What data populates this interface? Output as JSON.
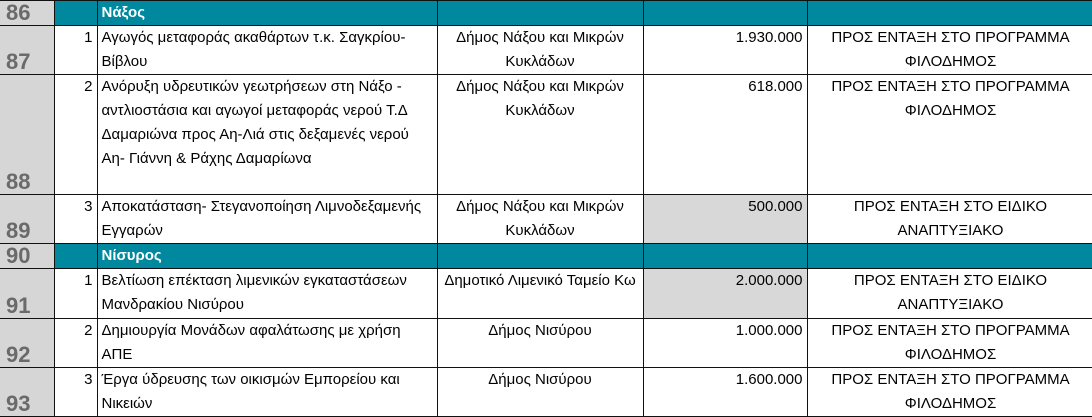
{
  "colors": {
    "section_fill": "#00889f",
    "row_header_fill": "#d6d6d6",
    "highlight_fill": "#d8d8d8"
  },
  "rows": [
    {
      "row": "86",
      "type": "section",
      "title": "Νάξος"
    },
    {
      "row": "87",
      "type": "item",
      "no": "1",
      "project": "Αγωγός μεταφοράς ακαθάρτων τ.κ. Σαγκρίου- Βίβλου",
      "body": "Δήμος Νάξου και Μικρών Κυκλάδων",
      "amount": "1.930.000",
      "amount_highlight": false,
      "status": "ΠΡΟΣ ΕΝΤΑΞΗ ΣΤΟ ΠΡΟΓΡΑΜΜΑ ΦΙΛΟΔΗΜΟΣ"
    },
    {
      "row": "88",
      "type": "item",
      "no": "2",
      "project": "Ανόρυξη υδρευτικών γεωτρήσεων στη Νάξο - αντλιοστάσια και αγωγοί μεταφοράς νερού Τ.Δ Δαμαριώνα προς Αη-Λιά στις δεξαμενές νερού Αη- Γιάννη & Ράχης Δαμαρίωνα",
      "body": "Δήμος Νάξου και Μικρών Κυκλάδων",
      "amount": "618.000",
      "amount_highlight": false,
      "status": "ΠΡΟΣ ΕΝΤΑΞΗ ΣΤΟ ΠΡΟΓΡΑΜΜΑ ΦΙΛΟΔΗΜΟΣ"
    },
    {
      "row": "89",
      "type": "item",
      "no": "3",
      "project": "Αποκατάσταση- Στεγανοποίηση Λιμνοδεξαμενής Εγγαρών",
      "body": "Δήμος Νάξου και Μικρών Κυκλάδων",
      "amount": "500.000",
      "amount_highlight": true,
      "status": "ΠΡΟΣ ΕΝΤΑΞΗ ΣΤΟ ΕΙΔΙΚΟ ΑΝΑΠΤΥΞΙΑΚΟ"
    },
    {
      "row": "90",
      "type": "section",
      "title": "Νίσυρος"
    },
    {
      "row": "91",
      "type": "item",
      "no": "1",
      "project": "Βελτίωση επέκταση λιμενικών εγκαταστάσεων Μανδρακίου Νισύρου",
      "body": "Δημοτικό Λιμενικό Ταμείο Κω",
      "amount": "2.000.000",
      "amount_highlight": true,
      "status": "ΠΡΟΣ ΕΝΤΑΞΗ ΣΤΟ ΕΙΔΙΚΟ ΑΝΑΠΤΥΞΙΑΚΟ"
    },
    {
      "row": "92",
      "type": "item",
      "no": "2",
      "project": "Δημιουργία Μονάδων αφαλάτωσης με χρήση ΑΠΕ",
      "body": "Δήμος Νισύρου",
      "amount": "1.000.000",
      "amount_highlight": false,
      "status": "ΠΡΟΣ ΕΝΤΑΞΗ ΣΤΟ ΠΡΟΓΡΑΜΜΑ ΦΙΛΟΔΗΜΟΣ"
    },
    {
      "row": "93",
      "type": "item",
      "no": "3",
      "project": "Έργα ύδρευσης των οικισμών Εμπορείου και Νικειών",
      "body": "Δήμος Νισύρου",
      "amount": "1.600.000",
      "amount_highlight": false,
      "status": "ΠΡΟΣ ΕΝΤΑΞΗ ΣΤΟ ΠΡΟΓΡΑΜΜΑ ΦΙΛΟΔΗΜΟΣ"
    }
  ]
}
